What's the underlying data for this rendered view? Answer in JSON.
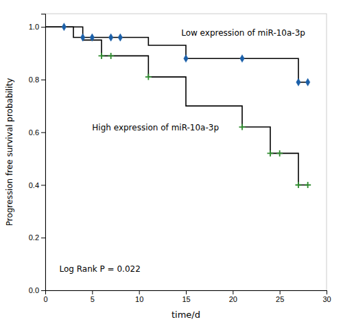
{
  "chart_data": {
    "type": "step",
    "xlabel": "time/d",
    "ylabel": "Progression free survival probability",
    "series": [
      {
        "type": "step",
        "color": "black",
        "x": [
          0,
          2,
          3,
          4,
          5,
          7,
          8,
          11,
          15,
          21,
          24,
          27,
          28
        ],
        "values": [
          1.0,
          1.0,
          0.96,
          0.96,
          0.96,
          0.96,
          0.96,
          0.93,
          0.88,
          0.88,
          0.88,
          0.79,
          0.79
        ]
      },
      {
        "type": "step",
        "color": "black",
        "x": [
          0,
          4,
          6,
          7,
          11,
          15,
          21,
          24,
          25,
          27,
          28
        ],
        "values": [
          1.0,
          0.95,
          0.89,
          0.89,
          0.81,
          0.7,
          0.62,
          0.52,
          0.52,
          0.4,
          0.4
        ]
      },
      {
        "type": "scatter",
        "marker": "diamond",
        "color": "#1a5fa8",
        "x": [
          2,
          4,
          5,
          7,
          8,
          15,
          21,
          27,
          28
        ],
        "values": [
          1.0,
          0.96,
          0.96,
          0.96,
          0.96,
          0.88,
          0.88,
          0.79,
          0.79
        ]
      },
      {
        "type": "scatter",
        "marker": "plus",
        "color": "#2e8b2e",
        "x": [
          6,
          7,
          11,
          21,
          24,
          25,
          27,
          28
        ],
        "values": [
          0.89,
          0.89,
          0.81,
          0.62,
          0.52,
          0.52,
          0.4,
          0.4
        ]
      }
    ],
    "annotations": [
      {
        "text": "Low expression of miR-10a-3p",
        "x": 14.5,
        "y": 0.975
      },
      {
        "text": "High expression of miR-10a-3p",
        "x": 5.0,
        "y": 0.615
      },
      {
        "text": "Log Rank P = 0.022",
        "x": 1.5,
        "y": 0.08
      }
    ],
    "xlim": [
      0,
      30
    ],
    "ylim": [
      0.0,
      1.05
    ],
    "xticks": [
      0,
      5,
      10,
      15,
      20,
      25,
      30
    ],
    "yticks": [
      {
        "value": 0.0,
        "label": "0.0"
      },
      0.2,
      0.4,
      0.6,
      0.8,
      {
        "value": 1.0,
        "label": "1.0"
      }
    ],
    "grid": false
  }
}
